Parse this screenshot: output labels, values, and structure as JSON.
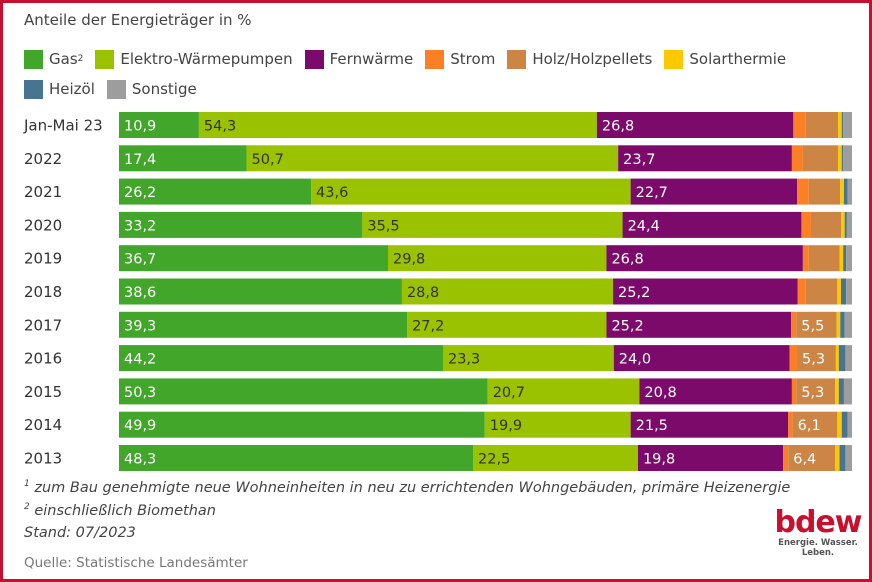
{
  "chart_data": {
    "type": "bar",
    "orientation": "horizontal",
    "stacked": true,
    "title": "Anteile der Energieträger in %",
    "categories": [
      "Jan-Mai 23",
      "2022",
      "2021",
      "2020",
      "2019",
      "2018",
      "2017",
      "2016",
      "2015",
      "2014",
      "2013"
    ],
    "xlim": [
      0,
      100
    ],
    "grid": false,
    "legend_placement": "top",
    "series": [
      {
        "name": "Gas",
        "sup": "2",
        "color": "#41a62a",
        "label_color": "#ffffff",
        "values": [
          10.9,
          17.4,
          26.2,
          33.2,
          36.7,
          38.6,
          39.3,
          44.2,
          50.3,
          49.9,
          48.3
        ]
      },
      {
        "name": "Elektro-Wärmepumpen",
        "color": "#9bc200",
        "label_color": "#333333",
        "values": [
          54.3,
          50.7,
          43.6,
          35.5,
          29.8,
          28.8,
          27.2,
          23.3,
          20.7,
          19.9,
          22.5
        ]
      },
      {
        "name": "Fernwärme",
        "color": "#7b0a6b",
        "label_color": "#ffffff",
        "values": [
          26.8,
          23.7,
          22.7,
          24.4,
          26.8,
          25.2,
          25.2,
          24.0,
          20.8,
          21.5,
          19.8
        ]
      },
      {
        "name": "Strom",
        "color": "#fb7f24",
        "label_color": "#ffffff",
        "values": [
          1.7,
          1.5,
          1.6,
          1.3,
          0.8,
          1.1,
          0.7,
          1.0,
          0.6,
          0.6,
          0.7
        ]
      },
      {
        "name": "Holz/Holzpellets",
        "color": "#cc8544",
        "label_color": "#ffffff",
        "values": [
          4.4,
          4.8,
          4.3,
          4.1,
          4.2,
          4.3,
          5.5,
          5.3,
          5.3,
          6.1,
          6.4
        ]
      },
      {
        "name": "Solarthermie",
        "color": "#fcc800",
        "label_color": "#333333",
        "values": [
          0.5,
          0.5,
          0.5,
          0.5,
          0.5,
          0.5,
          0.5,
          0.4,
          0.5,
          0.6,
          0.6
        ]
      },
      {
        "name": "Heizöl",
        "color": "#467491",
        "label_color": "#ffffff",
        "values": [
          0.2,
          0.2,
          0.5,
          0.3,
          0.4,
          0.7,
          0.6,
          0.9,
          0.7,
          0.8,
          0.8
        ]
      },
      {
        "name": "Sonstige",
        "color": "#9d9d9d",
        "label_color": "#333333",
        "values": [
          1.2,
          1.2,
          0.6,
          0.7,
          0.8,
          0.8,
          1.0,
          0.9,
          1.1,
          0.6,
          0.9
        ]
      }
    ],
    "data_labels_shown_min": 5
  },
  "footnotes": {
    "f1_mark": "1",
    "f1": " zum Bau genehmigte neue Wohneinheiten in neu zu errichtenden Wohngebäuden, primäre Heizenergie",
    "f2_mark": "2",
    "f2": " einschließlich Biomethan",
    "stand": "Stand: 07/2023"
  },
  "source": "Quelle: Statistische Landesämter",
  "logo": {
    "word": "bdew",
    "tagline": "Energie. Wasser. Leben.",
    "color": "#c8102e"
  }
}
